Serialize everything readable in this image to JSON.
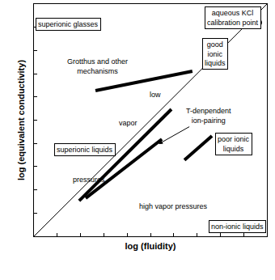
{
  "chart_data": {
    "type": "line",
    "x_label": "log (fluidity)",
    "y_label": "log (equivalent conductivity)",
    "xlim": [
      0,
      10
    ],
    "ylim": [
      0,
      10
    ],
    "xticks": [
      0,
      1,
      2,
      3,
      4,
      5,
      6,
      7,
      8,
      9,
      10
    ],
    "yticks": [
      0,
      1,
      2,
      3,
      4,
      5,
      6,
      7,
      8,
      9,
      10
    ],
    "tick_labels": false,
    "grid": false,
    "color": "#000000",
    "series": [
      {
        "x": [
          0,
          10
        ],
        "values": [
          0,
          10
        ],
        "line_style": "thin"
      },
      {
        "x": [
          2.64,
          6.8
        ],
        "values": [
          6.27,
          7.11
        ],
        "line_style": "thick"
      },
      {
        "x": [
          1.94,
          5.9
        ],
        "values": [
          1.53,
          5.47
        ],
        "line_style": "thick"
      },
      {
        "x": [
          2.22,
          5.49
        ],
        "values": [
          1.64,
          4.18
        ],
        "line_style": "thick"
      },
      {
        "x": [
          6.46,
          7.64
        ],
        "values": [
          3.28,
          4.32
        ],
        "line_style": "thick"
      },
      {
        "x": [
          9.6
        ],
        "values": [
          9.2
        ],
        "type": "scatter",
        "marker": "circle-open"
      }
    ],
    "annotations": [
      {
        "lines": [
          "superionic glasses"
        ],
        "x": 1.49,
        "y": 9.13,
        "point": [
          0.1,
          9.13
        ]
      },
      {
        "lines": [
          "aqueous KCl",
          "calibration point"
        ],
        "x": 8.55,
        "y": 9.42,
        "point": [
          9.5,
          9.1
        ]
      },
      {
        "lines": [
          "Grotthus and other",
          "mechanisms"
        ],
        "x": 2.74,
        "y": 7.32
      },
      {
        "lines": [
          "good",
          "ionic",
          "liquids"
        ],
        "x": 7.78,
        "y": 7.87
      },
      {
        "lines": [
          "low"
        ],
        "x": 5.21,
        "y": 6.1
      },
      {
        "lines": [
          "vapor"
        ],
        "x": 4.03,
        "y": 4.88
      },
      {
        "lines": [
          "pressures"
        ],
        "x": 2.36,
        "y": 2.44
      },
      {
        "lines": [
          "superionic liquids"
        ],
        "x": 2.19,
        "y": 3.73
      },
      {
        "lines": [
          "T-denpendent",
          "ion-pairing"
        ],
        "x": 7.5,
        "y": 5.19,
        "point": [
          5.35,
          3.97
        ]
      },
      {
        "lines": [
          "poor ionic",
          "liquids"
        ],
        "x": 8.58,
        "y": 3.97
      },
      {
        "lines": [
          "high vapor pressures"
        ],
        "x": 6.0,
        "y": 1.29
      },
      {
        "lines": [
          "non-ionic liquids"
        ],
        "x": 8.72,
        "y": 0.42
      }
    ]
  }
}
